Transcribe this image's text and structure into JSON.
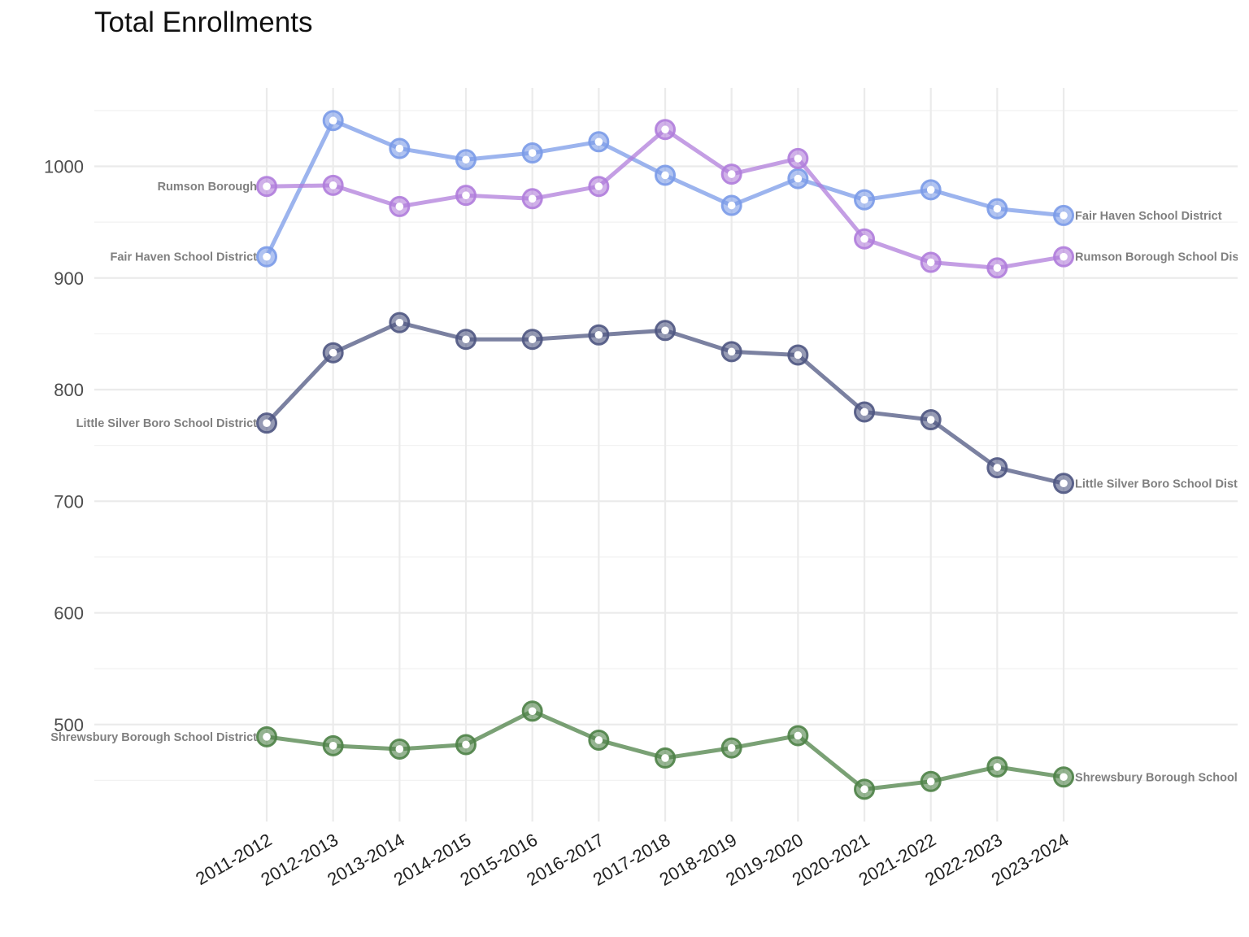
{
  "chart_data": {
    "type": "line",
    "title": "Total Enrollments",
    "xlabel": "",
    "ylabel": "",
    "x": [
      "2011-2012",
      "2012-2013",
      "2013-2014",
      "2014-2015",
      "2015-2016",
      "2016-2017",
      "2017-2018",
      "2018-2019",
      "2019-2020",
      "2020-2021",
      "2021-2022",
      "2022-2023",
      "2023-2024"
    ],
    "ylim": [
      410,
      1070
    ],
    "yticks": [
      500,
      600,
      700,
      800,
      900,
      1000
    ],
    "grid": true,
    "legend": "none",
    "series": [
      {
        "name": "Fair Haven School District",
        "start_label": "Fair Haven School District",
        "end_label": "Fair Haven School District",
        "color": "#7b9be8",
        "values": [
          919,
          1041,
          1016,
          1006,
          1012,
          1022,
          992,
          965,
          989,
          970,
          979,
          962,
          956
        ]
      },
      {
        "name": "Rumson Borough School District",
        "start_label": "Rumson Borough",
        "end_label": "Rumson Borough School District",
        "color": "#b07ddb",
        "values": [
          982,
          983,
          964,
          974,
          971,
          982,
          1033,
          993,
          1007,
          935,
          914,
          909,
          919
        ]
      },
      {
        "name": "Little Silver Boro School District",
        "start_label": "Little Silver Boro School District",
        "end_label": "Little Silver Boro School District",
        "color": "#4f5782",
        "values": [
          770,
          833,
          860,
          845,
          845,
          849,
          853,
          834,
          831,
          780,
          773,
          730,
          716
        ]
      },
      {
        "name": "Shrewsbury Borough School District",
        "start_label": "Shrewsbury Borough School District",
        "end_label": "Shrewsbury Borough School District",
        "color": "#4e8247",
        "values": [
          489,
          481,
          478,
          482,
          512,
          486,
          470,
          479,
          490,
          442,
          449,
          462,
          453
        ]
      }
    ]
  }
}
